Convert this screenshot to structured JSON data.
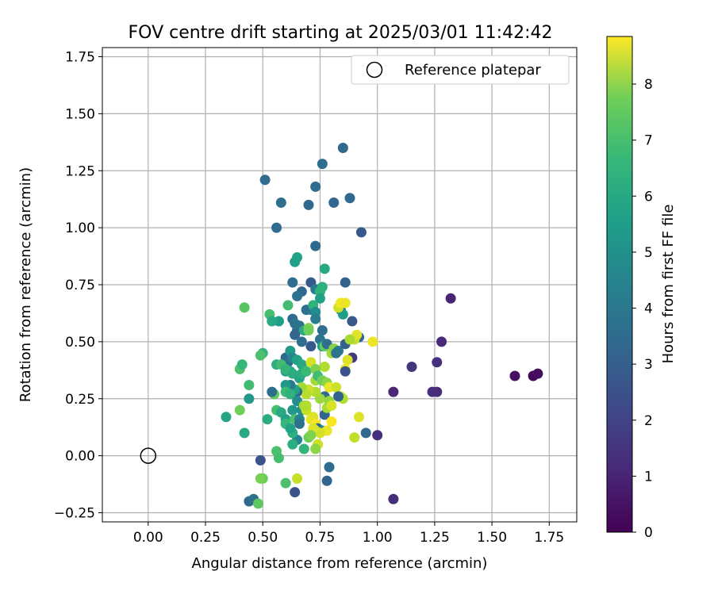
{
  "chart_data": {
    "type": "scatter",
    "title": "FOV centre drift starting at 2025/03/01 11:42:42",
    "xlabel": "Angular distance from reference (arcmin)",
    "ylabel": "Rotation from reference (arcmin)",
    "xlim": [
      -0.2,
      1.87
    ],
    "ylim": [
      -0.29,
      1.79
    ],
    "xticks": [
      "0.00",
      "0.25",
      "0.50",
      "0.75",
      "1.00",
      "1.25",
      "1.50",
      "1.75"
    ],
    "yticks": [
      "−0.25",
      "0.00",
      "0.25",
      "0.50",
      "0.75",
      "1.00",
      "1.25",
      "1.50",
      "1.75"
    ],
    "grid": true,
    "legend": {
      "position": "top-right",
      "entries": [
        "Reference platepar"
      ]
    },
    "reference_point": {
      "x": 0.0,
      "y": 0.0
    },
    "colorbar": {
      "label": "Hours from first FF file",
      "min": 0,
      "max": 8.85,
      "ticks": [
        "0",
        "1",
        "2",
        "3",
        "4",
        "5",
        "6",
        "7",
        "8"
      ],
      "colormap": "viridis"
    },
    "points": [
      [
        0.51,
        1.21,
        3.1
      ],
      [
        0.76,
        1.28,
        3.2
      ],
      [
        0.85,
        1.35,
        3.0
      ],
      [
        0.88,
        1.13,
        3.0
      ],
      [
        0.81,
        1.11,
        2.9
      ],
      [
        0.73,
        1.18,
        3.1
      ],
      [
        0.58,
        1.11,
        3.2
      ],
      [
        0.7,
        1.1,
        3.0
      ],
      [
        0.56,
        1.0,
        3.1
      ],
      [
        0.93,
        0.98,
        2.5
      ],
      [
        0.73,
        0.92,
        3.0
      ],
      [
        0.64,
        0.85,
        4.9
      ],
      [
        0.65,
        0.87,
        5.1
      ],
      [
        0.77,
        0.82,
        5.3
      ],
      [
        0.63,
        0.76,
        3.1
      ],
      [
        0.71,
        0.76,
        2.5
      ],
      [
        0.86,
        0.76,
        2.8
      ],
      [
        0.67,
        0.72,
        3.0
      ],
      [
        0.65,
        0.7,
        3.3
      ],
      [
        0.73,
        0.73,
        3.6
      ],
      [
        0.76,
        0.74,
        5.6
      ],
      [
        0.75,
        0.72,
        5.7
      ],
      [
        0.75,
        0.69,
        5.0
      ],
      [
        0.69,
        0.64,
        3.2
      ],
      [
        0.71,
        0.64,
        3.4
      ],
      [
        0.72,
        0.66,
        5.7
      ],
      [
        0.73,
        0.63,
        4.3
      ],
      [
        0.84,
        0.64,
        3.2
      ],
      [
        0.84,
        0.66,
        3.5
      ],
      [
        0.85,
        0.62,
        4.9
      ],
      [
        0.61,
        0.66,
        6.1
      ],
      [
        0.42,
        0.65,
        6.5
      ],
      [
        0.53,
        0.62,
        6.2
      ],
      [
        0.57,
        0.59,
        4.9
      ],
      [
        0.54,
        0.59,
        5.3
      ],
      [
        0.63,
        0.6,
        3.0
      ],
      [
        0.64,
        0.58,
        3.4
      ],
      [
        0.65,
        0.55,
        3.1
      ],
      [
        0.66,
        0.57,
        3.3
      ],
      [
        0.68,
        0.55,
        5.3
      ],
      [
        0.7,
        0.56,
        7.1
      ],
      [
        0.7,
        0.55,
        6.9
      ],
      [
        0.73,
        0.6,
        3.7
      ],
      [
        0.76,
        0.55,
        3.2
      ],
      [
        0.64,
        0.53,
        2.9
      ],
      [
        0.67,
        0.5,
        3.1
      ],
      [
        0.71,
        0.48,
        2.5
      ],
      [
        0.75,
        0.51,
        3.4
      ],
      [
        0.76,
        0.48,
        4.9
      ],
      [
        0.77,
        0.48,
        6.7
      ],
      [
        0.78,
        0.49,
        3.2
      ],
      [
        0.8,
        0.45,
        7.6
      ],
      [
        0.81,
        0.47,
        7.2
      ],
      [
        0.83,
        0.46,
        3.7
      ],
      [
        0.86,
        0.49,
        2.7
      ],
      [
        0.89,
        0.59,
        2.4
      ],
      [
        0.92,
        0.52,
        3.0
      ],
      [
        0.9,
        0.51,
        8.1
      ],
      [
        0.91,
        0.53,
        8.5
      ],
      [
        0.98,
        0.5,
        8.6
      ],
      [
        0.88,
        0.51,
        7.7
      ],
      [
        0.89,
        0.43,
        1.5
      ],
      [
        0.87,
        0.42,
        8.4
      ],
      [
        0.86,
        0.38,
        8.6
      ],
      [
        0.86,
        0.37,
        2.3
      ],
      [
        0.82,
        0.45,
        3.4
      ],
      [
        0.83,
        0.65,
        8.2
      ],
      [
        0.84,
        0.67,
        8.7
      ],
      [
        0.86,
        0.67,
        8.6
      ],
      [
        0.77,
        0.39,
        7.8
      ],
      [
        0.5,
        0.45,
        5.8
      ],
      [
        0.49,
        0.44,
        6.3
      ],
      [
        0.6,
        0.43,
        3.0
      ],
      [
        0.61,
        0.41,
        3.2
      ],
      [
        0.62,
        0.46,
        4.8
      ],
      [
        0.63,
        0.43,
        4.1
      ],
      [
        0.65,
        0.42,
        5.1
      ],
      [
        0.67,
        0.4,
        5.3
      ],
      [
        0.56,
        0.4,
        5.5
      ],
      [
        0.58,
        0.4,
        6.1
      ],
      [
        0.6,
        0.37,
        5.1
      ],
      [
        0.62,
        0.37,
        5.3
      ],
      [
        0.6,
        0.38,
        5.8
      ],
      [
        0.63,
        0.36,
        5.5
      ],
      [
        0.66,
        0.34,
        5.2
      ],
      [
        0.67,
        0.36,
        5.5
      ],
      [
        0.69,
        0.37,
        6.0
      ],
      [
        0.71,
        0.41,
        8.3
      ],
      [
        0.73,
        0.38,
        7.1
      ],
      [
        0.73,
        0.33,
        7.6
      ],
      [
        0.74,
        0.35,
        6.1
      ],
      [
        0.76,
        0.33,
        6.9
      ],
      [
        0.78,
        0.32,
        7.3
      ],
      [
        0.79,
        0.3,
        8.6
      ],
      [
        0.82,
        0.3,
        8.2
      ],
      [
        0.84,
        0.26,
        8.4
      ],
      [
        0.85,
        0.25,
        7.8
      ],
      [
        0.83,
        0.26,
        2.8
      ],
      [
        0.77,
        0.26,
        3.0
      ],
      [
        0.75,
        0.25,
        7.5
      ],
      [
        0.73,
        0.28,
        7.8
      ],
      [
        0.7,
        0.29,
        8.2
      ],
      [
        0.69,
        0.27,
        7.9
      ],
      [
        0.67,
        0.3,
        7.6
      ],
      [
        0.65,
        0.28,
        2.9
      ],
      [
        0.64,
        0.29,
        5.1
      ],
      [
        0.62,
        0.31,
        3.6
      ],
      [
        0.6,
        0.31,
        4.7
      ],
      [
        0.6,
        0.28,
        6.0
      ],
      [
        0.62,
        0.27,
        5.7
      ],
      [
        0.55,
        0.27,
        6.7
      ],
      [
        0.54,
        0.28,
        3.2
      ],
      [
        0.4,
        0.38,
        6.3
      ],
      [
        0.41,
        0.4,
        5.9
      ],
      [
        0.44,
        0.31,
        6.1
      ],
      [
        0.44,
        0.25,
        4.7
      ],
      [
        0.4,
        0.2,
        6.9
      ],
      [
        0.34,
        0.17,
        5.2
      ],
      [
        0.42,
        0.1,
        5.3
      ],
      [
        0.52,
        0.16,
        5.5
      ],
      [
        0.56,
        0.2,
        6.2
      ],
      [
        0.58,
        0.19,
        5.4
      ],
      [
        0.6,
        0.16,
        5.1
      ],
      [
        0.6,
        0.14,
        5.9
      ],
      [
        0.63,
        0.2,
        4.7
      ],
      [
        0.64,
        0.16,
        6.3
      ],
      [
        0.66,
        0.16,
        4.0
      ],
      [
        0.66,
        0.14,
        3.3
      ],
      [
        0.67,
        0.2,
        4.4
      ],
      [
        0.65,
        0.24,
        4.3
      ],
      [
        0.68,
        0.22,
        7.6
      ],
      [
        0.69,
        0.2,
        8.1
      ],
      [
        0.69,
        0.22,
        7.8
      ],
      [
        0.71,
        0.16,
        8.6
      ],
      [
        0.72,
        0.17,
        8.4
      ],
      [
        0.73,
        0.14,
        8.8
      ],
      [
        0.74,
        0.12,
        3.0
      ],
      [
        0.76,
        0.11,
        4.1
      ],
      [
        0.77,
        0.18,
        2.9
      ],
      [
        0.78,
        0.21,
        7.7
      ],
      [
        0.79,
        0.24,
        7.4
      ],
      [
        0.8,
        0.22,
        8.3
      ],
      [
        0.8,
        0.15,
        8.8
      ],
      [
        0.78,
        0.11,
        8.6
      ],
      [
        0.75,
        0.1,
        8.3
      ],
      [
        0.73,
        0.11,
        8.2
      ],
      [
        0.72,
        0.12,
        8.4
      ],
      [
        0.7,
        0.08,
        6.8
      ],
      [
        0.71,
        0.09,
        7.1
      ],
      [
        0.74,
        0.05,
        8.2
      ],
      [
        0.73,
        0.03,
        7.3
      ],
      [
        0.68,
        0.03,
        5.8
      ],
      [
        0.65,
        0.07,
        4.1
      ],
      [
        0.63,
        0.05,
        5.5
      ],
      [
        0.63,
        0.1,
        5.6
      ],
      [
        0.62,
        0.12,
        5.1
      ],
      [
        0.56,
        0.02,
        6.3
      ],
      [
        0.57,
        -0.01,
        6.2
      ],
      [
        0.49,
        -0.02,
        2.3
      ],
      [
        0.5,
        -0.1,
        6.7
      ],
      [
        0.49,
        -0.1,
        7.0
      ],
      [
        0.6,
        -0.12,
        6.3
      ],
      [
        0.65,
        -0.1,
        8.1
      ],
      [
        0.64,
        -0.16,
        2.3
      ],
      [
        0.78,
        -0.11,
        2.9
      ],
      [
        0.79,
        -0.05,
        3.1
      ],
      [
        0.44,
        -0.2,
        3.0
      ],
      [
        0.46,
        -0.19,
        3.2
      ],
      [
        0.48,
        -0.21,
        6.6
      ],
      [
        0.95,
        0.1,
        3.0
      ],
      [
        0.92,
        0.17,
        8.4
      ],
      [
        0.9,
        0.08,
        8.0
      ],
      [
        1.0,
        0.09,
        1.2
      ],
      [
        1.07,
        0.28,
        1.0
      ],
      [
        1.07,
        -0.19,
        1.1
      ],
      [
        1.15,
        0.39,
        1.4
      ],
      [
        1.26,
        0.41,
        1.2
      ],
      [
        1.28,
        0.5,
        1.0
      ],
      [
        1.32,
        0.69,
        0.9
      ],
      [
        1.24,
        0.28,
        1.2
      ],
      [
        1.26,
        0.28,
        1.1
      ],
      [
        1.6,
        0.35,
        0.4
      ],
      [
        1.68,
        0.35,
        0.2
      ],
      [
        1.7,
        0.36,
        0.3
      ]
    ]
  }
}
